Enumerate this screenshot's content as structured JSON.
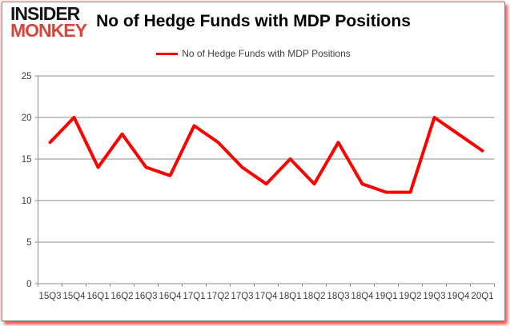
{
  "logo": {
    "line1": "INSIDER",
    "line2": "MONKEY"
  },
  "header": {
    "title": "No of Hedge Funds with MDP Positions"
  },
  "legend": {
    "label": "No of Hedge Funds with MDP Positions",
    "line_color": "#ff0000"
  },
  "chart_data": {
    "type": "line",
    "title": "No of Hedge Funds with MDP Positions",
    "categories": [
      "15Q3",
      "15Q4",
      "16Q1",
      "16Q2",
      "16Q3",
      "16Q4",
      "17Q1",
      "17Q2",
      "17Q3",
      "17Q4",
      "18Q1",
      "18Q2",
      "18Q3",
      "18Q4",
      "19Q1",
      "19Q2",
      "19Q3",
      "19Q4",
      "20Q1"
    ],
    "series": [
      {
        "name": "No of Hedge Funds with MDP Positions",
        "color": "#ff0000",
        "values": [
          17,
          20,
          14,
          18,
          14,
          13,
          19,
          17,
          14,
          12,
          15,
          12,
          17,
          12,
          11,
          11,
          20,
          18,
          16
        ]
      }
    ],
    "xlabel": "",
    "ylabel": "",
    "ylim": [
      0,
      25
    ],
    "ytick_step": 5,
    "grid": true,
    "legend_position": "top"
  },
  "colors": {
    "series_red": "#ff0000",
    "logo_red": "#d8453c",
    "gridline_gray": "#8e8e8e",
    "axis_label_gray": "#3f3f3f"
  }
}
